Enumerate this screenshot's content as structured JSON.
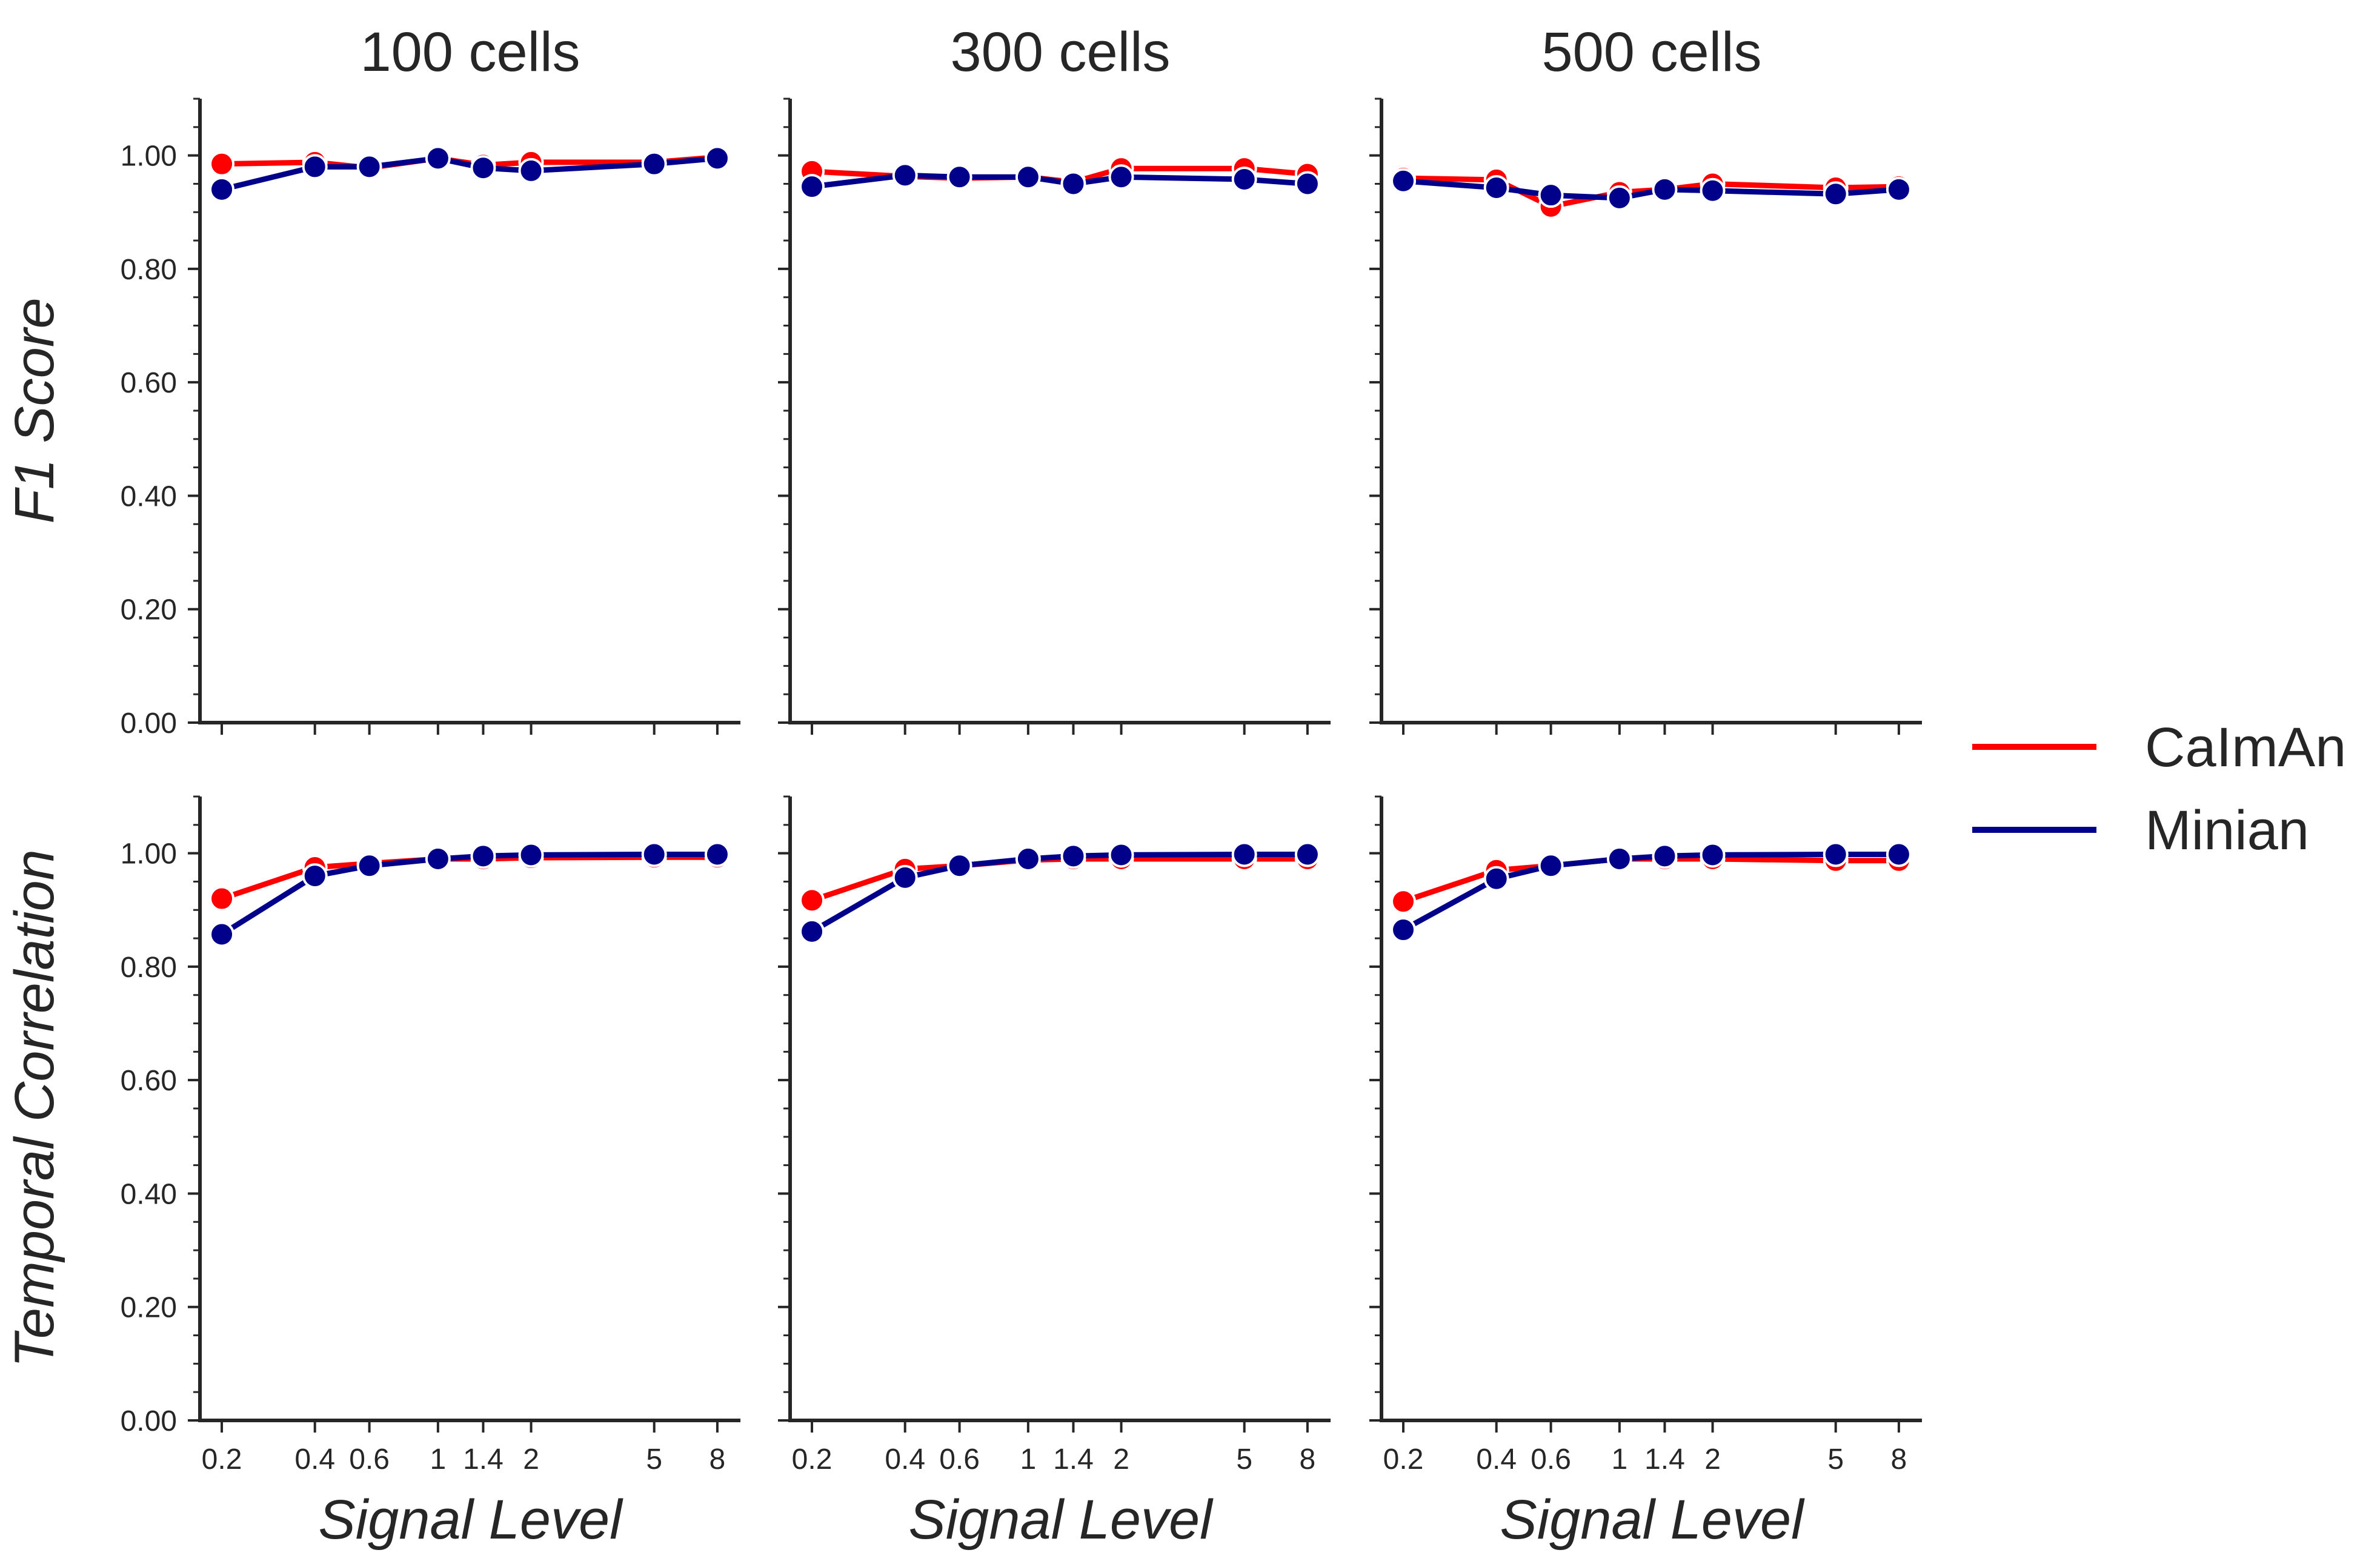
{
  "legend": {
    "entries": [
      {
        "name": "CaImAn",
        "color": "#ff0000"
      },
      {
        "name": "Minian",
        "color": "#00008b"
      }
    ],
    "placement": "right"
  },
  "colors": {
    "caiman": "#ff0000",
    "minian": "#00008b",
    "axis": "#262626",
    "marker_edge": "#ffffff"
  },
  "chart_data": [
    {
      "type": "line",
      "title": "100 cells",
      "xlabel": "",
      "ylabel": "F1 Score",
      "x": [
        0.2,
        0.4,
        0.6,
        1,
        1.4,
        2,
        5,
        8
      ],
      "x_tick_labels": [
        "0.2",
        "0.4",
        "0.6",
        "1",
        "1.4",
        "2",
        "5",
        "8"
      ],
      "x_scale": "log",
      "xlim": [
        0.17,
        9.5
      ],
      "ylim": [
        0,
        1.1
      ],
      "y_ticks": [
        0,
        0.2,
        0.4,
        0.6,
        0.8,
        1.0
      ],
      "y_tick_labels": [
        "0.00",
        "0.20",
        "0.40",
        "0.60",
        "0.80",
        "1.00"
      ],
      "show_x_tick_labels": false,
      "grid": false,
      "series": [
        {
          "name": "CaImAn",
          "values": [
            0.985,
            0.988,
            0.978,
            0.995,
            0.983,
            0.988,
            0.988,
            0.997
          ]
        },
        {
          "name": "Minian",
          "values": [
            0.94,
            0.98,
            0.98,
            0.995,
            0.978,
            0.973,
            0.985,
            0.995
          ]
        }
      ]
    },
    {
      "type": "line",
      "title": "300 cells",
      "xlabel": "",
      "ylabel": "",
      "x": [
        0.2,
        0.4,
        0.6,
        1,
        1.4,
        2,
        5,
        8
      ],
      "x_tick_labels": [
        "0.2",
        "0.4",
        "0.6",
        "1",
        "1.4",
        "2",
        "5",
        "8"
      ],
      "x_scale": "log",
      "xlim": [
        0.17,
        9.5
      ],
      "ylim": [
        0,
        1.1
      ],
      "y_ticks": [
        0,
        0.2,
        0.4,
        0.6,
        0.8,
        1.0
      ],
      "y_tick_labels": [],
      "show_x_tick_labels": false,
      "grid": false,
      "series": [
        {
          "name": "CaImAn",
          "values": [
            0.972,
            0.963,
            0.96,
            0.962,
            0.953,
            0.977,
            0.977,
            0.967
          ]
        },
        {
          "name": "Minian",
          "values": [
            0.945,
            0.965,
            0.962,
            0.962,
            0.95,
            0.962,
            0.958,
            0.95
          ]
        }
      ]
    },
    {
      "type": "line",
      "title": "500 cells",
      "xlabel": "",
      "ylabel": "",
      "x": [
        0.2,
        0.4,
        0.6,
        1,
        1.4,
        2,
        5,
        8
      ],
      "x_tick_labels": [
        "0.2",
        "0.4",
        "0.6",
        "1",
        "1.4",
        "2",
        "5",
        "8"
      ],
      "x_scale": "log",
      "xlim": [
        0.17,
        9.5
      ],
      "ylim": [
        0,
        1.1
      ],
      "y_ticks": [
        0,
        0.2,
        0.4,
        0.6,
        0.8,
        1.0
      ],
      "y_tick_labels": [],
      "show_x_tick_labels": false,
      "grid": false,
      "series": [
        {
          "name": "CaImAn",
          "values": [
            0.96,
            0.957,
            0.91,
            0.935,
            0.94,
            0.95,
            0.943,
            0.945
          ]
        },
        {
          "name": "Minian",
          "values": [
            0.955,
            0.943,
            0.93,
            0.925,
            0.94,
            0.938,
            0.932,
            0.94
          ]
        }
      ]
    },
    {
      "type": "line",
      "title": "",
      "xlabel": "Signal Level",
      "ylabel": "Temporal Correlation",
      "x": [
        0.2,
        0.4,
        0.6,
        1,
        1.4,
        2,
        5,
        8
      ],
      "x_tick_labels": [
        "0.2",
        "0.4",
        "0.6",
        "1",
        "1.4",
        "2",
        "5",
        "8"
      ],
      "x_scale": "log",
      "xlim": [
        0.17,
        9.5
      ],
      "ylim": [
        0,
        1.1
      ],
      "y_ticks": [
        0,
        0.2,
        0.4,
        0.6,
        0.8,
        1.0
      ],
      "y_tick_labels": [
        "0.00",
        "0.20",
        "0.40",
        "0.60",
        "0.80",
        "1.00"
      ],
      "show_x_tick_labels": true,
      "grid": false,
      "series": [
        {
          "name": "CaImAn",
          "values": [
            0.92,
            0.975,
            0.982,
            0.99,
            0.99,
            0.992,
            0.993,
            0.993
          ]
        },
        {
          "name": "Minian",
          "values": [
            0.857,
            0.96,
            0.978,
            0.99,
            0.995,
            0.997,
            0.998,
            0.998
          ]
        }
      ]
    },
    {
      "type": "line",
      "title": "",
      "xlabel": "Signal Level",
      "ylabel": "",
      "x": [
        0.2,
        0.4,
        0.6,
        1,
        1.4,
        2,
        5,
        8
      ],
      "x_tick_labels": [
        "0.2",
        "0.4",
        "0.6",
        "1",
        "1.4",
        "2",
        "5",
        "8"
      ],
      "x_scale": "log",
      "xlim": [
        0.17,
        9.5
      ],
      "ylim": [
        0,
        1.1
      ],
      "y_ticks": [
        0,
        0.2,
        0.4,
        0.6,
        0.8,
        1.0
      ],
      "y_tick_labels": [],
      "show_x_tick_labels": true,
      "grid": false,
      "series": [
        {
          "name": "CaImAn",
          "values": [
            0.917,
            0.972,
            0.978,
            0.988,
            0.99,
            0.99,
            0.99,
            0.99
          ]
        },
        {
          "name": "Minian",
          "values": [
            0.862,
            0.957,
            0.978,
            0.99,
            0.995,
            0.997,
            0.998,
            0.998
          ]
        }
      ]
    },
    {
      "type": "line",
      "title": "",
      "xlabel": "Signal Level",
      "ylabel": "",
      "x": [
        0.2,
        0.4,
        0.6,
        1,
        1.4,
        2,
        5,
        8
      ],
      "x_tick_labels": [
        "0.2",
        "0.4",
        "0.6",
        "1",
        "1.4",
        "2",
        "5",
        "8"
      ],
      "x_scale": "log",
      "xlim": [
        0.17,
        9.5
      ],
      "ylim": [
        0,
        1.1
      ],
      "y_ticks": [
        0,
        0.2,
        0.4,
        0.6,
        0.8,
        1.0
      ],
      "y_tick_labels": [],
      "show_x_tick_labels": true,
      "grid": false,
      "series": [
        {
          "name": "CaImAn",
          "values": [
            0.915,
            0.97,
            0.978,
            0.99,
            0.99,
            0.99,
            0.987,
            0.987
          ]
        },
        {
          "name": "Minian",
          "values": [
            0.865,
            0.955,
            0.978,
            0.99,
            0.995,
            0.997,
            0.998,
            0.998
          ]
        }
      ]
    }
  ]
}
